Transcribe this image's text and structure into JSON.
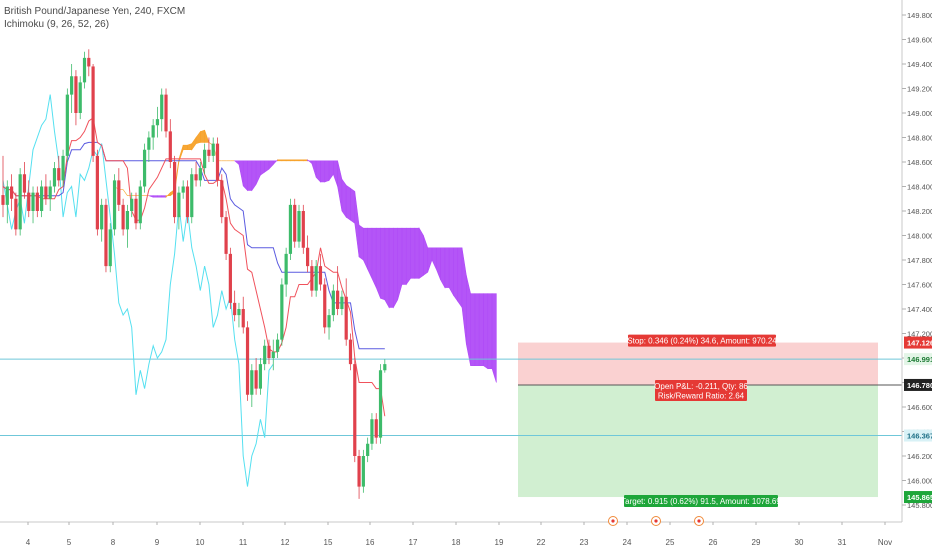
{
  "header": {
    "instrument": "British Pound/Japanese Yen, 240, FXCM",
    "indicator": "Ichimoku (9, 26, 52, 26)"
  },
  "colors": {
    "up": "#3dbb6a",
    "down": "#e0414c",
    "conversion": "#f0525c",
    "base": "#5b5be0",
    "lagging": "#55e0f0",
    "cloud_bull": "#f7a22a",
    "cloud_bear": "#b04cf7",
    "stop_zone": "#f9c9c9",
    "target_zone": "#c9ecc9",
    "hline": "#6fc7d9"
  },
  "chart_data": {
    "type": "candlestick",
    "instrument": "British Pound/Japanese Yen",
    "interval": "240",
    "source": "FXCM",
    "x_tick_labels": [
      "4",
      "5",
      "8",
      "9",
      "10",
      "11",
      "12",
      "15",
      "16",
      "17",
      "18",
      "19",
      "22",
      "23",
      "24",
      "25",
      "26",
      "29",
      "30",
      "31",
      "Nov"
    ],
    "y_tick_labels": [
      "149.800",
      "149.600",
      "149.400",
      "149.200",
      "149.000",
      "148.800",
      "148.600",
      "148.400",
      "148.200",
      "148.000",
      "147.800",
      "147.600",
      "147.400",
      "147.200",
      "147.000",
      "146.800",
      "146.600",
      "146.400",
      "146.200",
      "146.000",
      "145.800"
    ],
    "ylim": [
      145.75,
      149.9
    ],
    "candles": [
      {
        "o": 148.33,
        "h": 148.65,
        "l": 148.15,
        "c": 148.25
      },
      {
        "o": 148.25,
        "h": 148.45,
        "l": 148.1,
        "c": 148.4
      },
      {
        "o": 148.4,
        "h": 148.5,
        "l": 148.2,
        "c": 148.3
      },
      {
        "o": 148.3,
        "h": 148.35,
        "l": 148.0,
        "c": 148.05
      },
      {
        "o": 148.05,
        "h": 148.55,
        "l": 148.0,
        "c": 148.5
      },
      {
        "o": 148.5,
        "h": 148.6,
        "l": 148.3,
        "c": 148.35
      },
      {
        "o": 148.35,
        "h": 148.45,
        "l": 148.15,
        "c": 148.2
      },
      {
        "o": 148.2,
        "h": 148.4,
        "l": 148.1,
        "c": 148.35
      },
      {
        "o": 148.35,
        "h": 148.4,
        "l": 148.15,
        "c": 148.2
      },
      {
        "o": 148.2,
        "h": 148.45,
        "l": 148.15,
        "c": 148.4
      },
      {
        "o": 148.4,
        "h": 148.5,
        "l": 148.25,
        "c": 148.3
      },
      {
        "o": 148.3,
        "h": 148.45,
        "l": 148.2,
        "c": 148.4
      },
      {
        "o": 148.4,
        "h": 148.6,
        "l": 148.35,
        "c": 148.55
      },
      {
        "o": 148.55,
        "h": 148.65,
        "l": 148.4,
        "c": 148.45
      },
      {
        "o": 148.45,
        "h": 148.7,
        "l": 148.4,
        "c": 148.65
      },
      {
        "o": 148.65,
        "h": 149.2,
        "l": 148.6,
        "c": 149.15
      },
      {
        "o": 149.15,
        "h": 149.4,
        "l": 149.0,
        "c": 149.3
      },
      {
        "o": 149.3,
        "h": 149.35,
        "l": 148.9,
        "c": 149.0
      },
      {
        "o": 149.0,
        "h": 149.3,
        "l": 148.95,
        "c": 149.25
      },
      {
        "o": 149.25,
        "h": 149.5,
        "l": 149.2,
        "c": 149.45
      },
      {
        "o": 149.45,
        "h": 149.52,
        "l": 149.3,
        "c": 149.38
      },
      {
        "o": 149.38,
        "h": 149.4,
        "l": 148.6,
        "c": 148.65
      },
      {
        "o": 148.65,
        "h": 148.7,
        "l": 148.0,
        "c": 148.05
      },
      {
        "o": 148.05,
        "h": 148.3,
        "l": 147.95,
        "c": 148.25
      },
      {
        "o": 148.25,
        "h": 148.3,
        "l": 147.7,
        "c": 147.75
      },
      {
        "o": 147.75,
        "h": 148.1,
        "l": 147.7,
        "c": 148.05
      },
      {
        "o": 148.05,
        "h": 148.5,
        "l": 148.0,
        "c": 148.45
      },
      {
        "o": 148.45,
        "h": 148.55,
        "l": 148.2,
        "c": 148.25
      },
      {
        "o": 148.25,
        "h": 148.3,
        "l": 148.0,
        "c": 148.05
      },
      {
        "o": 148.05,
        "h": 148.25,
        "l": 147.9,
        "c": 148.2
      },
      {
        "o": 148.2,
        "h": 148.35,
        "l": 148.15,
        "c": 148.3
      },
      {
        "o": 148.3,
        "h": 148.35,
        "l": 148.05,
        "c": 148.1
      },
      {
        "o": 148.1,
        "h": 148.45,
        "l": 148.05,
        "c": 148.4
      },
      {
        "o": 148.4,
        "h": 148.75,
        "l": 148.35,
        "c": 148.7
      },
      {
        "o": 148.7,
        "h": 148.85,
        "l": 148.6,
        "c": 148.8
      },
      {
        "o": 148.8,
        "h": 148.95,
        "l": 148.7,
        "c": 148.9
      },
      {
        "o": 148.9,
        "h": 149.05,
        "l": 148.8,
        "c": 148.95
      },
      {
        "o": 148.95,
        "h": 149.2,
        "l": 148.85,
        "c": 149.15
      },
      {
        "o": 149.15,
        "h": 149.2,
        "l": 148.8,
        "c": 148.85
      },
      {
        "o": 148.85,
        "h": 148.95,
        "l": 148.55,
        "c": 148.6
      },
      {
        "o": 148.6,
        "h": 148.65,
        "l": 148.1,
        "c": 148.15
      },
      {
        "o": 148.15,
        "h": 148.4,
        "l": 148.05,
        "c": 148.35
      },
      {
        "o": 148.35,
        "h": 148.45,
        "l": 148.3,
        "c": 148.4
      },
      {
        "o": 148.4,
        "h": 148.45,
        "l": 148.1,
        "c": 148.15
      },
      {
        "o": 148.15,
        "h": 148.55,
        "l": 148.1,
        "c": 148.5
      },
      {
        "o": 148.5,
        "h": 148.6,
        "l": 148.4,
        "c": 148.45
      },
      {
        "o": 148.45,
        "h": 148.6,
        "l": 148.4,
        "c": 148.55
      },
      {
        "o": 148.55,
        "h": 148.75,
        "l": 148.5,
        "c": 148.7
      },
      {
        "o": 148.7,
        "h": 148.8,
        "l": 148.6,
        "c": 148.65
      },
      {
        "o": 148.65,
        "h": 148.8,
        "l": 148.6,
        "c": 148.75
      },
      {
        "o": 148.75,
        "h": 148.8,
        "l": 148.4,
        "c": 148.45
      },
      {
        "o": 148.45,
        "h": 148.5,
        "l": 148.1,
        "c": 148.15
      },
      {
        "o": 148.15,
        "h": 148.2,
        "l": 147.8,
        "c": 147.85
      },
      {
        "o": 147.85,
        "h": 147.9,
        "l": 147.4,
        "c": 147.45
      },
      {
        "o": 147.45,
        "h": 147.55,
        "l": 147.3,
        "c": 147.35
      },
      {
        "o": 147.35,
        "h": 147.45,
        "l": 147.25,
        "c": 147.4
      },
      {
        "o": 147.4,
        "h": 147.5,
        "l": 147.2,
        "c": 147.25
      },
      {
        "o": 147.25,
        "h": 147.3,
        "l": 146.65,
        "c": 146.7
      },
      {
        "o": 146.7,
        "h": 146.95,
        "l": 146.6,
        "c": 146.9
      },
      {
        "o": 146.9,
        "h": 147.0,
        "l": 146.7,
        "c": 146.75
      },
      {
        "o": 146.75,
        "h": 147.0,
        "l": 146.7,
        "c": 146.95
      },
      {
        "o": 146.95,
        "h": 147.15,
        "l": 146.9,
        "c": 147.1
      },
      {
        "o": 147.1,
        "h": 147.15,
        "l": 146.95,
        "c": 147.0
      },
      {
        "o": 147.0,
        "h": 147.15,
        "l": 146.9,
        "c": 147.05
      },
      {
        "o": 147.05,
        "h": 147.2,
        "l": 147.0,
        "c": 147.15
      },
      {
        "o": 147.15,
        "h": 147.65,
        "l": 147.1,
        "c": 147.6
      },
      {
        "o": 147.6,
        "h": 147.9,
        "l": 147.5,
        "c": 147.85
      },
      {
        "o": 147.85,
        "h": 148.3,
        "l": 147.8,
        "c": 148.25
      },
      {
        "o": 148.25,
        "h": 148.3,
        "l": 147.9,
        "c": 147.95
      },
      {
        "o": 147.95,
        "h": 148.25,
        "l": 147.9,
        "c": 148.2
      },
      {
        "o": 148.2,
        "h": 148.25,
        "l": 147.85,
        "c": 147.9
      },
      {
        "o": 147.9,
        "h": 148.0,
        "l": 147.7,
        "c": 147.75
      },
      {
        "o": 147.75,
        "h": 147.8,
        "l": 147.5,
        "c": 147.55
      },
      {
        "o": 147.55,
        "h": 147.8,
        "l": 147.5,
        "c": 147.75
      },
      {
        "o": 147.75,
        "h": 147.85,
        "l": 147.55,
        "c": 147.6
      },
      {
        "o": 147.6,
        "h": 147.65,
        "l": 147.2,
        "c": 147.25
      },
      {
        "o": 147.25,
        "h": 147.4,
        "l": 147.15,
        "c": 147.35
      },
      {
        "o": 147.35,
        "h": 147.6,
        "l": 147.3,
        "c": 147.55
      },
      {
        "o": 147.55,
        "h": 147.75,
        "l": 147.35,
        "c": 147.4
      },
      {
        "o": 147.4,
        "h": 147.55,
        "l": 147.35,
        "c": 147.5
      },
      {
        "o": 147.5,
        "h": 147.65,
        "l": 147.1,
        "c": 147.15
      },
      {
        "o": 147.15,
        "h": 147.2,
        "l": 146.9,
        "c": 146.95
      },
      {
        "o": 146.95,
        "h": 147.0,
        "l": 146.15,
        "c": 146.2
      },
      {
        "o": 146.2,
        "h": 146.25,
        "l": 145.85,
        "c": 145.95
      },
      {
        "o": 145.95,
        "h": 146.25,
        "l": 145.9,
        "c": 146.2
      },
      {
        "o": 146.2,
        "h": 146.35,
        "l": 146.15,
        "c": 146.3
      },
      {
        "o": 146.3,
        "h": 146.55,
        "l": 146.25,
        "c": 146.5
      },
      {
        "o": 146.5,
        "h": 146.55,
        "l": 146.3,
        "c": 146.35
      },
      {
        "o": 146.35,
        "h": 146.95,
        "l": 146.3,
        "c": 146.9
      },
      {
        "o": 146.9,
        "h": 146.99,
        "l": 146.88,
        "c": 146.95
      }
    ],
    "positions": {
      "entry": 146.78,
      "stop": 147.126,
      "target": 145.865,
      "last": 146.991,
      "hline_upper": 146.991,
      "hline_lower": 146.367
    },
    "annotations": {
      "stop": "Stop: 0.346 (0.24%) 34.6, Amount: 970.24",
      "open_pl": "Open P&L: -0.211, Qty: 86",
      "risk_reward": "Risk/Reward Ratio: 2.64",
      "target": "Target: 0.915 (0.62%) 91.5, Amount: 1078.69"
    },
    "price_labels": {
      "stop": "147.126",
      "last": "146.991",
      "entry": "146.780",
      "lower": "146.367",
      "target": "145.865"
    }
  }
}
